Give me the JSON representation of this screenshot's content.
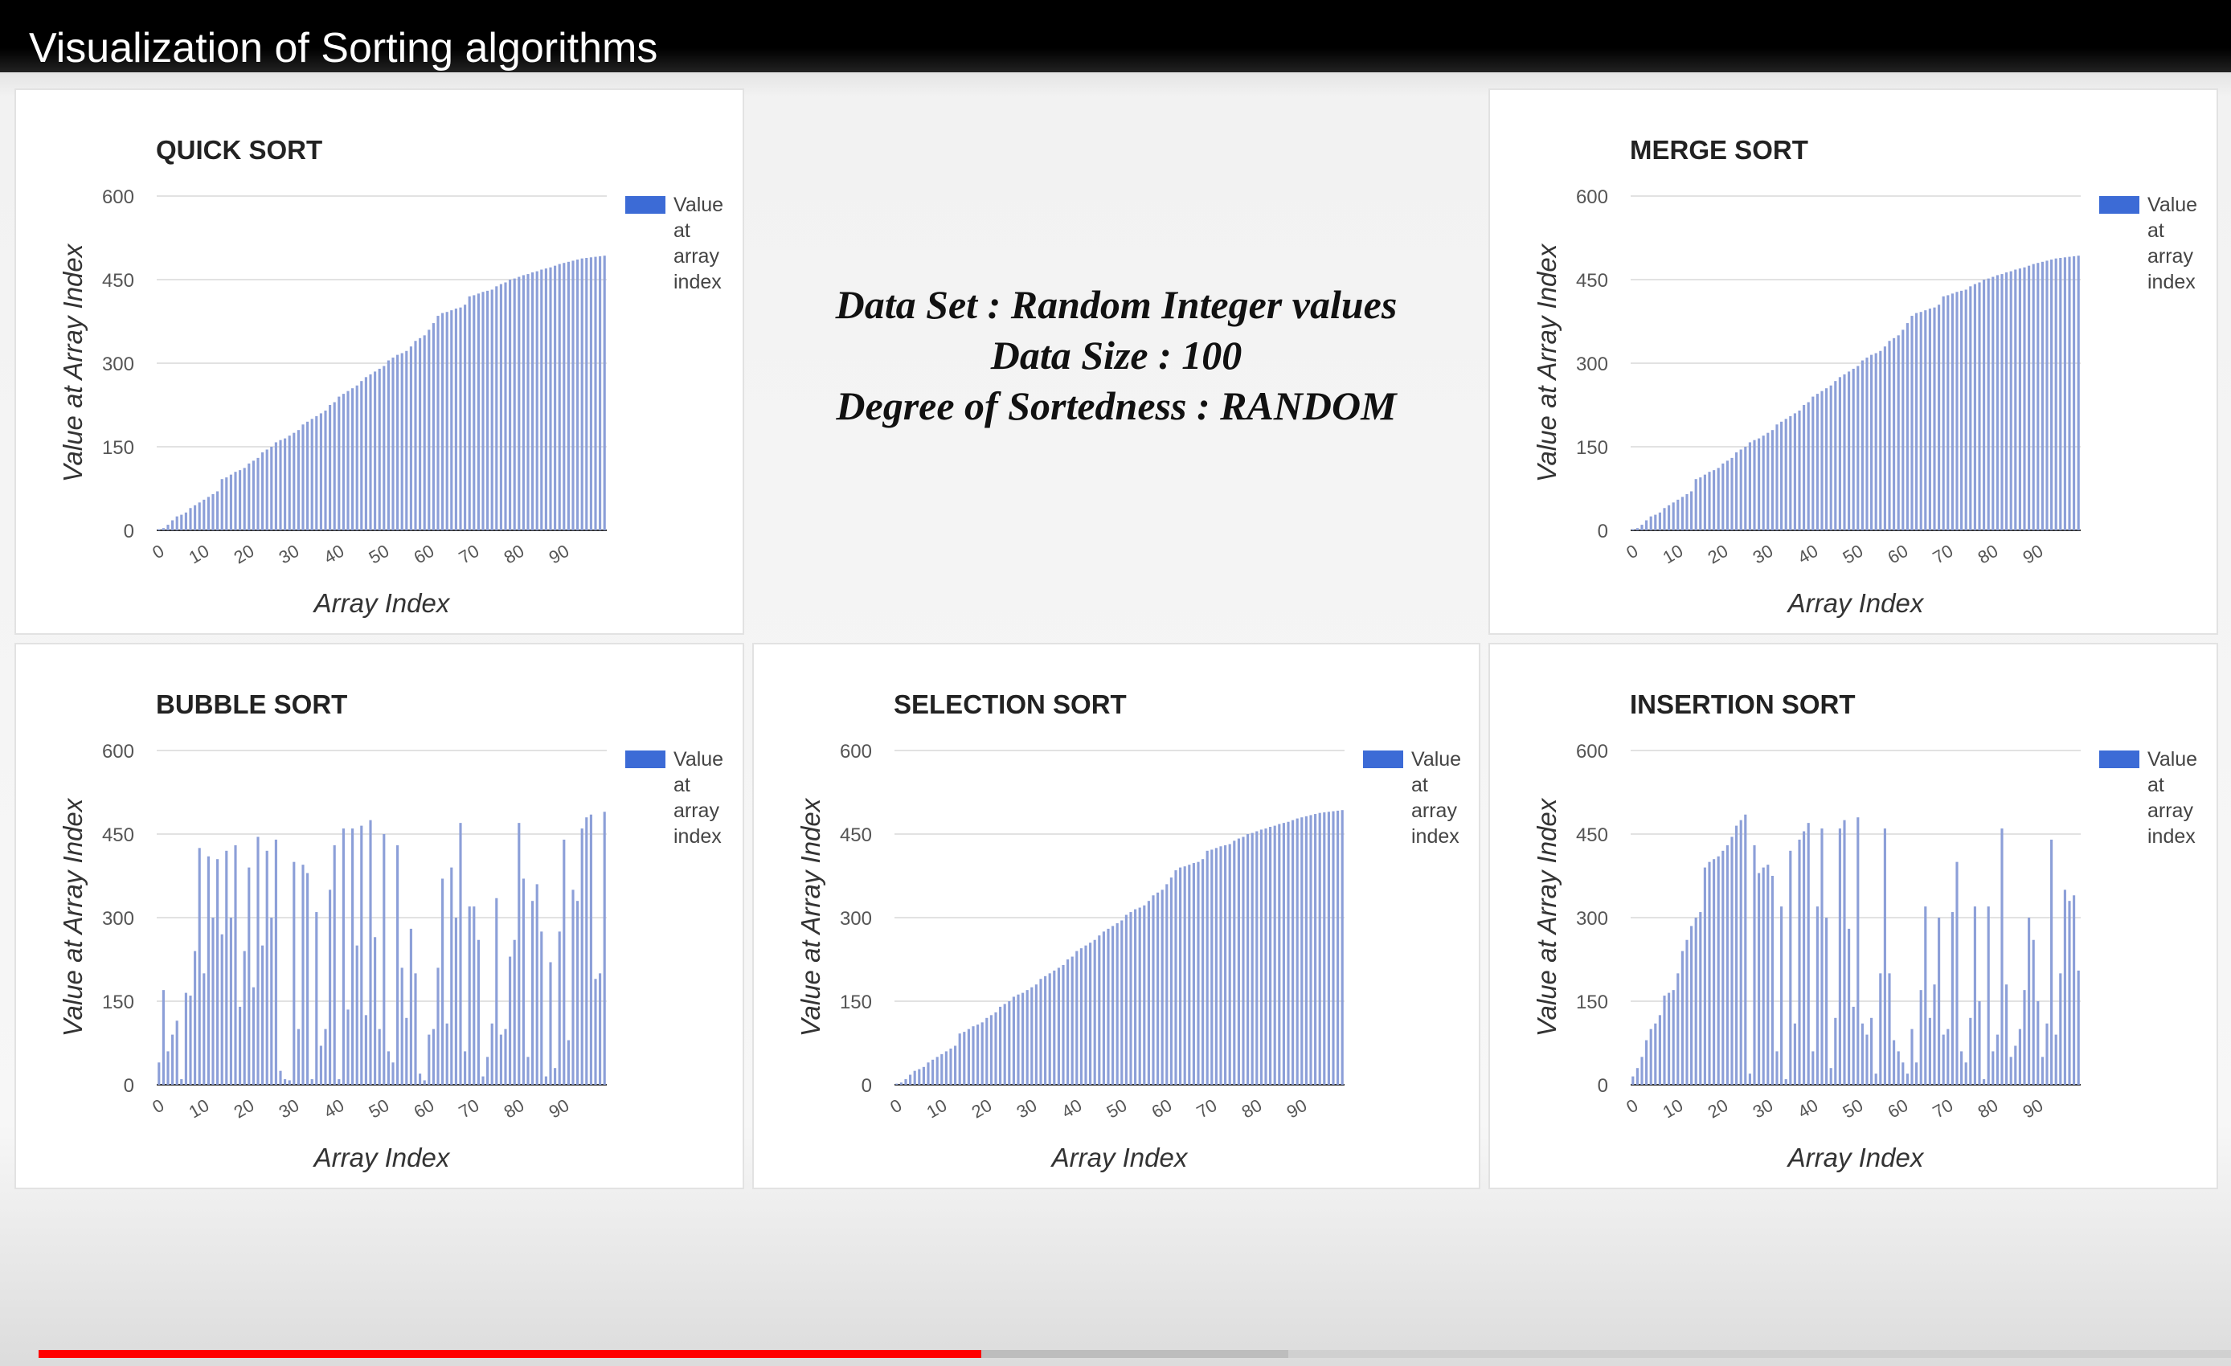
{
  "video": {
    "title": "Visualization of Sorting algorithms",
    "progress_played": 0.43,
    "progress_buffered": 0.57
  },
  "info": {
    "line1": "Data Set : Random Integer values",
    "line2": "Data Size : 100",
    "line3": "Degree of Sortedness : RANDOM"
  },
  "colors": {
    "bar": "#8c9fd8",
    "legend": "#3c6bd6",
    "progress": "#ff0000"
  },
  "chart_data": [
    {
      "type": "bar",
      "title": "QUICK SORT",
      "xlabel": "Array Index",
      "ylabel": "Value at Array Index",
      "legend": "Value at array index",
      "legend_position": "right",
      "ylim": [
        0,
        600
      ],
      "yticks": [
        0,
        150,
        300,
        450,
        600
      ],
      "xticks": [
        0,
        10,
        20,
        30,
        40,
        50,
        60,
        70,
        80,
        90
      ],
      "grid": true,
      "values": [
        2,
        4,
        10,
        18,
        25,
        28,
        32,
        40,
        45,
        50,
        55,
        60,
        65,
        70,
        92,
        95,
        100,
        105,
        108,
        112,
        120,
        125,
        130,
        140,
        145,
        150,
        158,
        162,
        165,
        170,
        175,
        180,
        190,
        195,
        200,
        205,
        210,
        215,
        225,
        230,
        240,
        245,
        250,
        255,
        260,
        268,
        275,
        280,
        285,
        290,
        295,
        305,
        310,
        315,
        318,
        322,
        330,
        340,
        345,
        350,
        360,
        372,
        385,
        390,
        392,
        395,
        398,
        400,
        405,
        420,
        422,
        425,
        428,
        430,
        432,
        438,
        442,
        445,
        450,
        452,
        455,
        458,
        460,
        463,
        465,
        468,
        470,
        472,
        475,
        478,
        480,
        482,
        484,
        486,
        488,
        489,
        490,
        491,
        492,
        493
      ]
    },
    {
      "type": "bar",
      "title": "MERGE SORT",
      "xlabel": "Array Index",
      "ylabel": "Value at Array Index",
      "legend": "Value at array index",
      "legend_position": "right",
      "ylim": [
        0,
        600
      ],
      "yticks": [
        0,
        150,
        300,
        450,
        600
      ],
      "xticks": [
        0,
        10,
        20,
        30,
        40,
        50,
        60,
        70,
        80,
        90
      ],
      "grid": true,
      "values": [
        2,
        4,
        10,
        18,
        25,
        28,
        32,
        40,
        45,
        50,
        55,
        60,
        65,
        70,
        92,
        95,
        100,
        105,
        108,
        112,
        120,
        125,
        130,
        140,
        145,
        150,
        158,
        162,
        165,
        170,
        175,
        180,
        190,
        195,
        200,
        205,
        210,
        215,
        225,
        230,
        240,
        245,
        250,
        255,
        260,
        268,
        275,
        280,
        285,
        290,
        295,
        305,
        310,
        315,
        318,
        322,
        330,
        340,
        345,
        350,
        360,
        372,
        385,
        390,
        392,
        395,
        398,
        400,
        405,
        420,
        422,
        425,
        428,
        430,
        432,
        438,
        442,
        445,
        450,
        452,
        455,
        458,
        460,
        463,
        465,
        468,
        470,
        472,
        475,
        478,
        480,
        482,
        484,
        486,
        488,
        489,
        490,
        491,
        492,
        493
      ]
    },
    {
      "type": "bar",
      "title": "BUBBLE SORT",
      "xlabel": "Array Index",
      "ylabel": "Value at Array Index",
      "legend": "Value at array index",
      "legend_position": "right",
      "ylim": [
        0,
        600
      ],
      "yticks": [
        0,
        150,
        300,
        450,
        600
      ],
      "xticks": [
        0,
        10,
        20,
        30,
        40,
        50,
        60,
        70,
        80,
        90
      ],
      "grid": true,
      "values": [
        40,
        170,
        60,
        90,
        115,
        10,
        165,
        160,
        240,
        425,
        200,
        410,
        300,
        405,
        270,
        420,
        300,
        430,
        140,
        240,
        390,
        175,
        445,
        250,
        420,
        300,
        440,
        25,
        10,
        8,
        400,
        100,
        395,
        380,
        10,
        310,
        70,
        100,
        350,
        430,
        10,
        460,
        135,
        460,
        250,
        465,
        125,
        475,
        265,
        100,
        450,
        60,
        40,
        430,
        210,
        120,
        280,
        200,
        20,
        8,
        90,
        100,
        210,
        370,
        110,
        390,
        300,
        470,
        60,
        320,
        320,
        260,
        15,
        50,
        110,
        335,
        90,
        100,
        230,
        260,
        470,
        370,
        50,
        330,
        360,
        275,
        15,
        220,
        30,
        275,
        440,
        80,
        350,
        330,
        460,
        480,
        485,
        190,
        200,
        490
      ]
    },
    {
      "type": "bar",
      "title": "SELECTION SORT",
      "xlabel": "Array Index",
      "ylabel": "Value at Array Index",
      "legend": "Value at array index",
      "legend_position": "right",
      "ylim": [
        0,
        600
      ],
      "yticks": [
        0,
        150,
        300,
        450,
        600
      ],
      "xticks": [
        0,
        10,
        20,
        30,
        40,
        50,
        60,
        70,
        80,
        90
      ],
      "grid": true,
      "values": [
        2,
        4,
        10,
        18,
        25,
        28,
        32,
        40,
        45,
        50,
        55,
        60,
        65,
        70,
        92,
        95,
        100,
        105,
        108,
        112,
        120,
        125,
        130,
        140,
        145,
        150,
        158,
        162,
        165,
        170,
        175,
        180,
        190,
        195,
        200,
        205,
        210,
        215,
        225,
        230,
        240,
        245,
        250,
        255,
        260,
        268,
        275,
        280,
        285,
        290,
        295,
        305,
        310,
        315,
        318,
        322,
        330,
        340,
        345,
        350,
        360,
        372,
        385,
        390,
        392,
        395,
        398,
        400,
        405,
        420,
        422,
        425,
        428,
        430,
        432,
        438,
        442,
        445,
        450,
        452,
        455,
        458,
        460,
        463,
        465,
        468,
        470,
        472,
        475,
        478,
        480,
        482,
        484,
        486,
        488,
        489,
        490,
        491,
        492,
        493
      ]
    },
    {
      "type": "bar",
      "title": "INSERTION SORT",
      "xlabel": "Array Index",
      "ylabel": "Value at Array Index",
      "legend": "Value at array index",
      "legend_position": "right",
      "ylim": [
        0,
        600
      ],
      "yticks": [
        0,
        150,
        300,
        450,
        600
      ],
      "xticks": [
        0,
        10,
        20,
        30,
        40,
        50,
        60,
        70,
        80,
        90
      ],
      "grid": true,
      "values": [
        15,
        30,
        50,
        80,
        100,
        110,
        125,
        160,
        165,
        170,
        200,
        240,
        260,
        285,
        300,
        310,
        390,
        400,
        405,
        410,
        420,
        430,
        445,
        465,
        475,
        485,
        20,
        430,
        380,
        390,
        395,
        375,
        60,
        320,
        10,
        420,
        110,
        440,
        455,
        470,
        60,
        320,
        460,
        300,
        30,
        120,
        460,
        475,
        280,
        140,
        480,
        110,
        90,
        120,
        20,
        200,
        460,
        200,
        80,
        60,
        40,
        20,
        100,
        40,
        170,
        320,
        120,
        180,
        300,
        90,
        100,
        310,
        400,
        60,
        40,
        120,
        320,
        150,
        10,
        320,
        60,
        90,
        460,
        180,
        50,
        70,
        100,
        170,
        300,
        260,
        150,
        50,
        110,
        440,
        90,
        200,
        350,
        330,
        340,
        205
      ]
    }
  ]
}
